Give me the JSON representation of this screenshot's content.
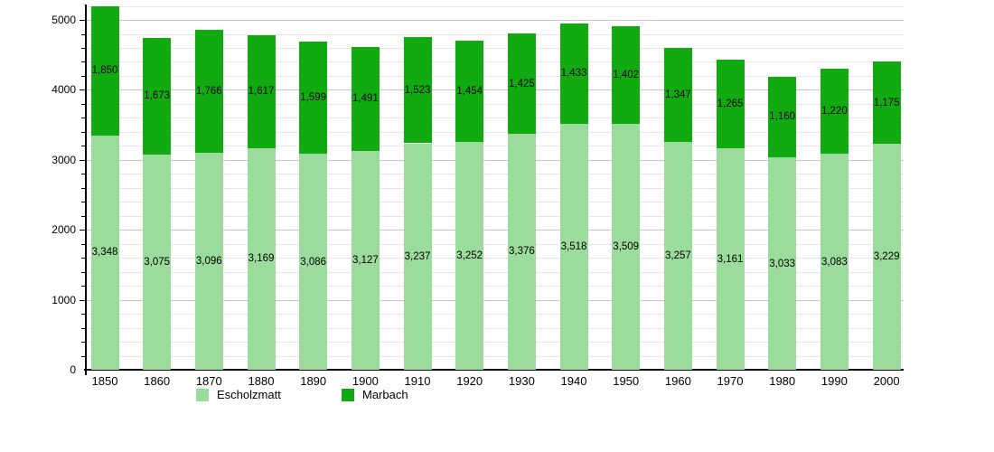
{
  "chart_data": {
    "type": "bar",
    "stacked": true,
    "title": "",
    "xlabel": "",
    "ylabel": "",
    "categories": [
      "1850",
      "1860",
      "1870",
      "1880",
      "1890",
      "1900",
      "1910",
      "1920",
      "1930",
      "1940",
      "1950",
      "1960",
      "1970",
      "1980",
      "1990",
      "2000"
    ],
    "series": [
      {
        "name": "Escholzmatt",
        "color": "#9bdb9b",
        "values": [
          3348,
          3075,
          3096,
          3169,
          3086,
          3127,
          3237,
          3252,
          3376,
          3518,
          3509,
          3257,
          3161,
          3033,
          3083,
          3229
        ]
      },
      {
        "name": "Marbach",
        "color": "#11ab11",
        "values": [
          1850,
          1673,
          1766,
          1617,
          1599,
          1491,
          1523,
          1454,
          1425,
          1433,
          1402,
          1347,
          1265,
          1160,
          1220,
          1175
        ]
      }
    ],
    "value_labels": {
      "Escholzmatt": [
        "3,348",
        "3,075",
        "3,096",
        "3,169",
        "3,086",
        "3,127",
        "3,237",
        "3,252",
        "3,376",
        "3,518",
        "3,509",
        "3,257",
        "3,161",
        "3,033",
        "3,083",
        "3,229"
      ],
      "Marbach": [
        "1,850",
        "1,673",
        "1,766",
        "1,617",
        "1,599",
        "1,491",
        "1,523",
        "1,454",
        "1,425",
        "1,433",
        "1,402",
        "1,347",
        "1,265",
        "1,160",
        "1,220",
        "1,175"
      ]
    },
    "ylim": [
      0,
      5000
    ],
    "y_tick_labels": [
      "0",
      "1000",
      "2000",
      "3000",
      "4000",
      "5000"
    ],
    "y_major_step": 1000,
    "y_minor_step": 200,
    "grid": true,
    "legend_position": "bottom",
    "legend": [
      {
        "label": "Escholzmatt",
        "color": "#9bdb9b"
      },
      {
        "label": "Marbach",
        "color": "#11ab11"
      }
    ]
  },
  "colors": {
    "background": "#ffffff",
    "axis": "#000000",
    "grid_major": "#c6c6c6",
    "grid_minor": "#e7e7e7",
    "text": "#000000"
  }
}
